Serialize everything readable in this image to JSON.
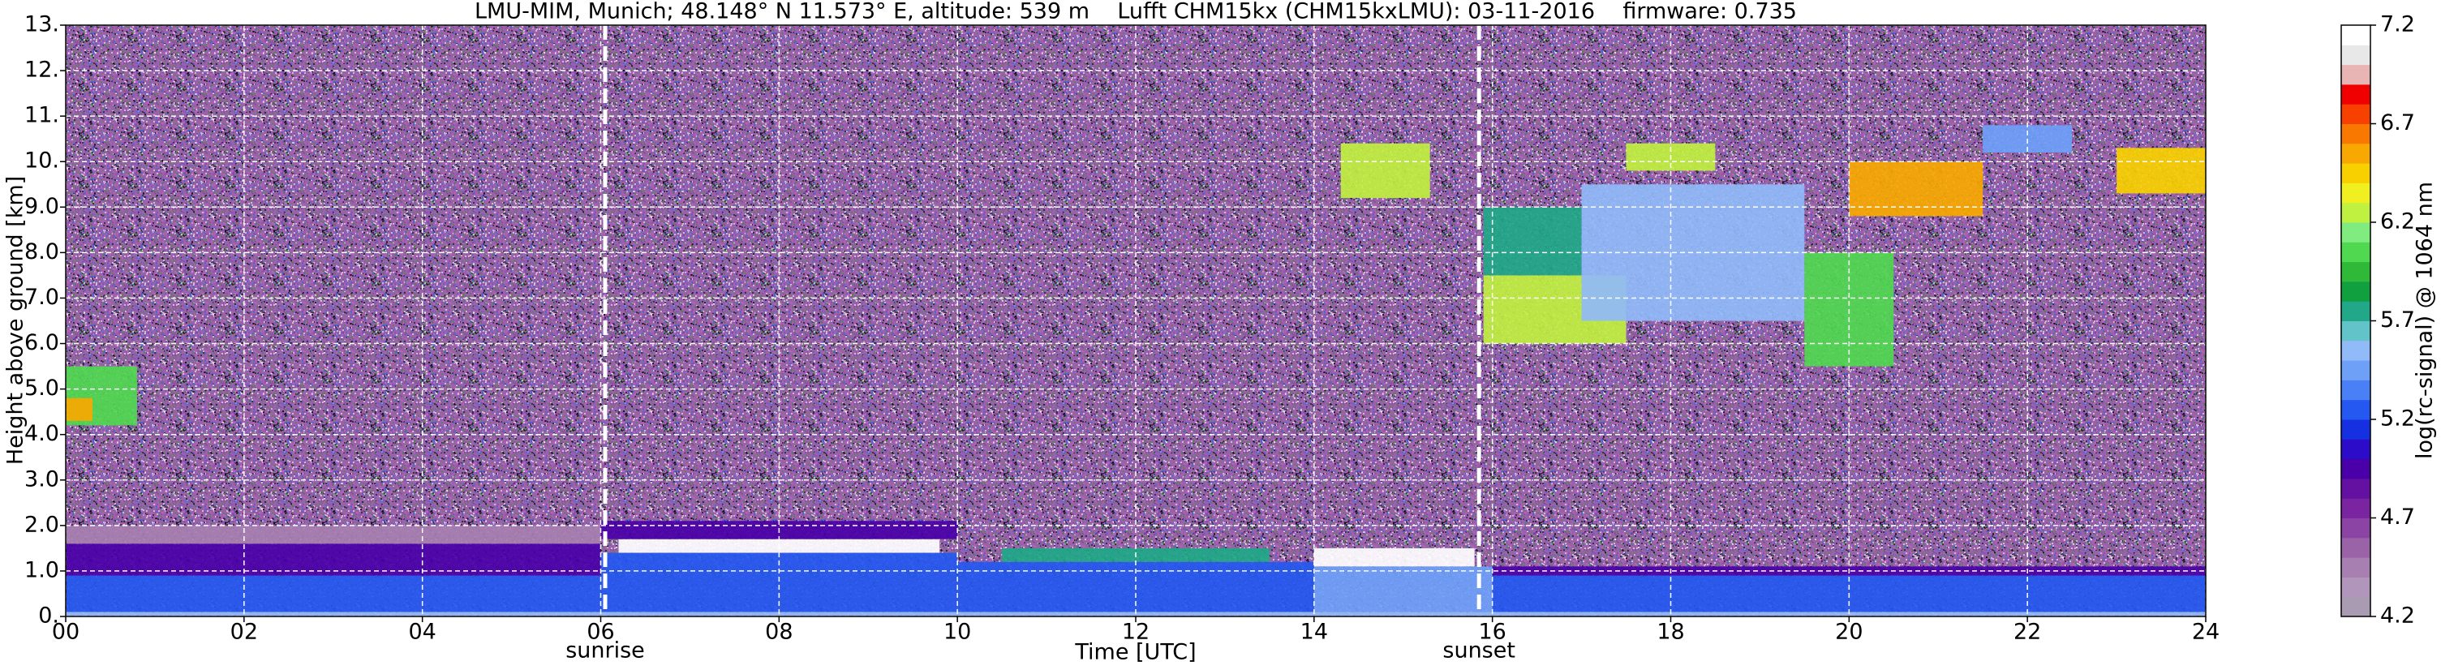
{
  "chart_data": {
    "type": "heatmap",
    "title": "LMU-MIM, Munich; 48.148° N 11.573° E, altitude: 539 m    Lufft CHM15kx (CHM15kxLMU): 03-11-2016    firmware: 0.735",
    "xlabel": "Time [UTC]",
    "ylabel": "Height above ground [km]",
    "xlim": [
      0,
      24
    ],
    "xticks": [
      {
        "value": 0,
        "label": "00"
      },
      {
        "value": 2,
        "label": "02"
      },
      {
        "value": 4,
        "label": "04"
      },
      {
        "value": 6,
        "label": "06"
      },
      {
        "value": 8,
        "label": "08"
      },
      {
        "value": 10,
        "label": "10"
      },
      {
        "value": 12,
        "label": "12"
      },
      {
        "value": 14,
        "label": "14"
      },
      {
        "value": 16,
        "label": "16"
      },
      {
        "value": 18,
        "label": "18"
      },
      {
        "value": 20,
        "label": "20"
      },
      {
        "value": 22,
        "label": "22"
      },
      {
        "value": 24,
        "label": "24"
      }
    ],
    "ylim": [
      0,
      13
    ],
    "yticks": [
      {
        "value": 0,
        "label": "0."
      },
      {
        "value": 1,
        "label": "1.0"
      },
      {
        "value": 2,
        "label": "2.0"
      },
      {
        "value": 3,
        "label": "3.0"
      },
      {
        "value": 4,
        "label": "4.0"
      },
      {
        "value": 5,
        "label": "5.0"
      },
      {
        "value": 6,
        "label": "6.0"
      },
      {
        "value": 7,
        "label": "7.0"
      },
      {
        "value": 8,
        "label": "8.0"
      },
      {
        "value": 9,
        "label": "9.0"
      },
      {
        "value": 10,
        "label": "10."
      },
      {
        "value": 11,
        "label": "11."
      },
      {
        "value": 12,
        "label": "12."
      },
      {
        "value": 13,
        "label": "13."
      }
    ],
    "grid": true,
    "colorbar": {
      "label": "log(rc-signal) @ 1064 nm",
      "clim": [
        4.2,
        7.2
      ],
      "ticks": [
        4.2,
        4.7,
        5.2,
        5.7,
        6.2,
        6.7,
        7.2
      ]
    },
    "colormap": [
      "#a99bb2",
      "#b195bb",
      "#a77fb0",
      "#9a62a7",
      "#8b44a3",
      "#7a24a2",
      "#6410a0",
      "#4a00a8",
      "#2c0cc8",
      "#1530e0",
      "#2458f0",
      "#4a80f6",
      "#6ea0f8",
      "#90baf8",
      "#62c4c8",
      "#20a888",
      "#10a040",
      "#30b838",
      "#50d850",
      "#80ec80",
      "#c0f040",
      "#f0f020",
      "#f8d000",
      "#f8a800",
      "#f87800",
      "#f84000",
      "#f00000",
      "#e8b4b4",
      "#e8e8e8",
      "#ffffff"
    ],
    "background": 4.55,
    "cells": [
      {
        "x": [
          0,
          24
        ],
        "y": [
          0,
          0.1
        ],
        "value": 5.6
      },
      {
        "x": [
          0,
          6
        ],
        "y": [
          0.1,
          0.9
        ],
        "value": 5.2
      },
      {
        "x": [
          0,
          6
        ],
        "y": [
          0.9,
          1.6
        ],
        "value": 4.9
      },
      {
        "x": [
          0,
          6
        ],
        "y": [
          1.6,
          2.0
        ],
        "value": 4.4
      },
      {
        "x": [
          6,
          10
        ],
        "y": [
          0.1,
          1.4
        ],
        "value": 5.3
      },
      {
        "x": [
          6.2,
          9.8
        ],
        "y": [
          1.4,
          1.7
        ],
        "value": 7.15
      },
      {
        "x": [
          6,
          10
        ],
        "y": [
          1.7,
          2.1
        ],
        "value": 4.9
      },
      {
        "x": [
          10,
          14
        ],
        "y": [
          0.1,
          1.2
        ],
        "value": 5.3
      },
      {
        "x": [
          10.5,
          13.5
        ],
        "y": [
          1.2,
          1.5
        ],
        "value": 5.8
      },
      {
        "x": [
          14,
          16
        ],
        "y": [
          0.1,
          1.1
        ],
        "value": 5.4
      },
      {
        "x": [
          14,
          15.8
        ],
        "y": [
          1.1,
          1.5
        ],
        "value": 7.15
      },
      {
        "x": [
          16,
          24
        ],
        "y": [
          0.1,
          0.9
        ],
        "value": 5.3
      },
      {
        "x": [
          16,
          24
        ],
        "y": [
          0.9,
          1.1
        ],
        "value": 4.9
      },
      {
        "x": [
          0,
          0.8
        ],
        "y": [
          4.2,
          5.5
        ],
        "value": 6.1
      },
      {
        "x": [
          0,
          0.3
        ],
        "y": [
          4.3,
          4.8
        ],
        "value": 6.6
      },
      {
        "x": [
          14.3,
          15.3
        ],
        "y": [
          9.2,
          10.4
        ],
        "value": 6.2
      },
      {
        "x": [
          15.9,
          17.5
        ],
        "y": [
          6.0,
          7.5
        ],
        "value": 6.3
      },
      {
        "x": [
          15.9,
          17
        ],
        "y": [
          7.5,
          9
        ],
        "value": 5.7
      },
      {
        "x": [
          17,
          19.5
        ],
        "y": [
          6.5,
          9.5
        ],
        "value": 5.6
      },
      {
        "x": [
          17.5,
          18.5
        ],
        "y": [
          9.8,
          10.4
        ],
        "value": 6.2
      },
      {
        "x": [
          19.5,
          20.5
        ],
        "y": [
          5.5,
          8
        ],
        "value": 6.0
      },
      {
        "x": [
          20,
          21.5
        ],
        "y": [
          8.8,
          10
        ],
        "value": 6.5
      },
      {
        "x": [
          21.5,
          22.5
        ],
        "y": [
          10.2,
          10.8
        ],
        "value": 5.5
      },
      {
        "x": [
          23,
          24
        ],
        "y": [
          9.3,
          10.3
        ],
        "value": 6.4
      }
    ],
    "annotations": [
      {
        "x": 6.05,
        "label": "sunrise"
      },
      {
        "x": 15.85,
        "label": "sunset"
      }
    ]
  }
}
